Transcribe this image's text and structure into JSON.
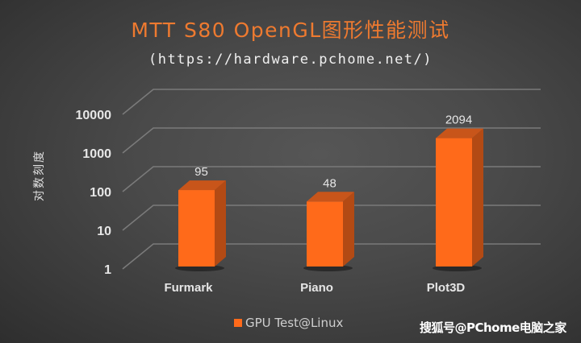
{
  "chart_data": {
    "type": "bar",
    "title": "MTT S80 OpenGL图形性能测试",
    "subtitle": "(https://hardware.pchome.net/)",
    "xlabel": "",
    "ylabel": "对数刻度",
    "yscale": "log",
    "ylim": [
      1,
      10000
    ],
    "yticks": [
      "1",
      "10",
      "100",
      "1000",
      "10000"
    ],
    "categories": [
      "Furmark",
      "Piano",
      "Plot3D"
    ],
    "series": [
      {
        "name": "GPU Test@Linux",
        "values": [
          95,
          48,
          2094
        ],
        "color": "#ff6a1a"
      }
    ],
    "data_labels": [
      "95",
      "48",
      "2094"
    ],
    "grid": true,
    "style": "3d-column",
    "legend_position": "bottom"
  },
  "watermark": "搜狐号@PChome电脑之家",
  "colors": {
    "bar_front": "#ff6a1a",
    "bar_side": "#b34a14",
    "bar_top": "#c8551a",
    "title": "#ee7a30",
    "grid": "#7a7a7a"
  }
}
